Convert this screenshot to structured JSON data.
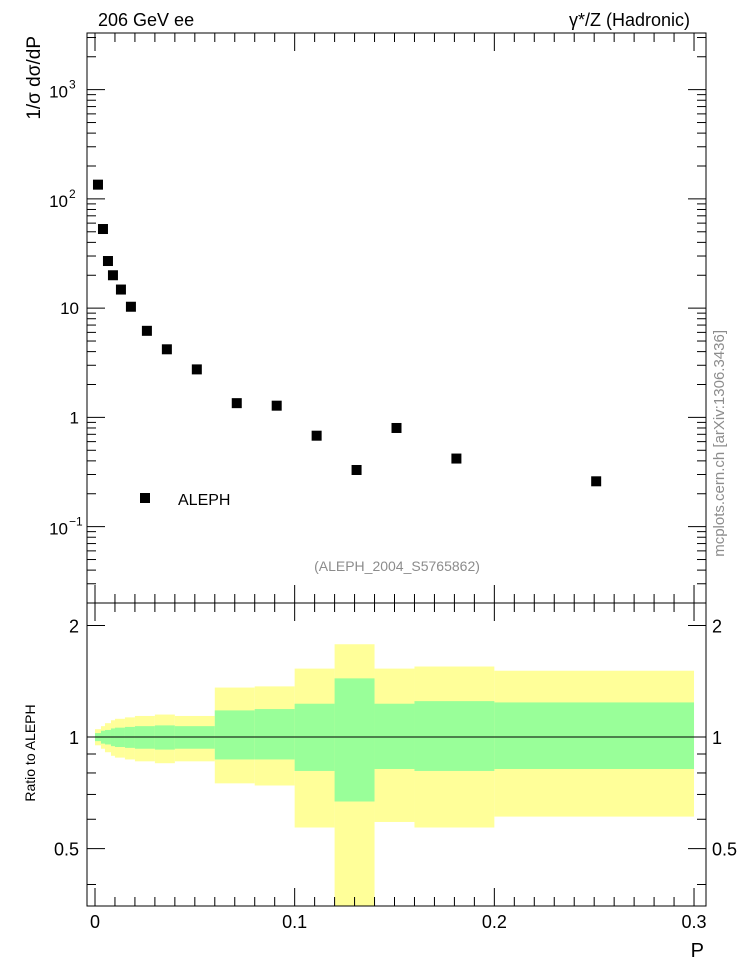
{
  "header": {
    "left": "206 GeV ee",
    "right": "γ*/Z (Hadronic)"
  },
  "side_label": "mcplots.cern.ch [arXiv:1306.3436]",
  "analysis_label": "(ALEPH_2004_S5765862)",
  "colors": {
    "band_outer": "#ffff99",
    "band_inner": "#99ff99",
    "marker": "#000000"
  },
  "chart_data": [
    {
      "type": "scatter",
      "ylabel": "1/σ  dσ/dP",
      "yscale": "log",
      "ylim": [
        0.02,
        3300
      ],
      "xlim": [
        -0.004,
        0.306
      ],
      "grid": false,
      "legend": {
        "position": "bottom-left",
        "entries": [
          "ALEPH"
        ]
      },
      "series": [
        {
          "name": "ALEPH",
          "x": [
            0.0015,
            0.004,
            0.0065,
            0.009,
            0.013,
            0.018,
            0.026,
            0.036,
            0.051,
            0.071,
            0.091,
            0.111,
            0.131,
            0.151,
            0.181,
            0.251
          ],
          "y": [
            135,
            53,
            27,
            20,
            14.8,
            10.3,
            6.2,
            4.2,
            2.75,
            1.35,
            1.28,
            0.68,
            0.33,
            0.8,
            0.42,
            0.26
          ]
        }
      ],
      "yticks_major": [
        {
          "value": 0.1,
          "base": "10",
          "exp": "−1"
        },
        {
          "value": 1,
          "text": "1"
        },
        {
          "value": 10,
          "text": "10"
        },
        {
          "value": 100,
          "base": "10",
          "exp": "2"
        },
        {
          "value": 1000,
          "base": "10",
          "exp": "3"
        }
      ]
    },
    {
      "type": "area",
      "xlabel": "P",
      "ylabel": "Ratio to ALEPH",
      "ylim": [
        0.35,
        2.3
      ],
      "xlim": [
        -0.004,
        0.306
      ],
      "reference_line": 1,
      "bins": [
        {
          "x0": 0.0,
          "x1": 0.003,
          "outer": [
            0.95,
            1.05
          ],
          "inner": [
            0.975,
            1.025
          ]
        },
        {
          "x0": 0.003,
          "x1": 0.005,
          "outer": [
            0.93,
            1.07
          ],
          "inner": [
            0.96,
            1.04
          ]
        },
        {
          "x0": 0.005,
          "x1": 0.008,
          "outer": [
            0.91,
            1.09
          ],
          "inner": [
            0.955,
            1.045
          ]
        },
        {
          "x0": 0.008,
          "x1": 0.01,
          "outer": [
            0.89,
            1.11
          ],
          "inner": [
            0.945,
            1.055
          ]
        },
        {
          "x0": 0.01,
          "x1": 0.015,
          "outer": [
            0.88,
            1.12
          ],
          "inner": [
            0.94,
            1.06
          ]
        },
        {
          "x0": 0.015,
          "x1": 0.02,
          "outer": [
            0.87,
            1.13
          ],
          "inner": [
            0.935,
            1.065
          ]
        },
        {
          "x0": 0.02,
          "x1": 0.03,
          "outer": [
            0.86,
            1.14
          ],
          "inner": [
            0.93,
            1.07
          ]
        },
        {
          "x0": 0.03,
          "x1": 0.04,
          "outer": [
            0.85,
            1.15
          ],
          "inner": [
            0.925,
            1.075
          ]
        },
        {
          "x0": 0.04,
          "x1": 0.06,
          "outer": [
            0.86,
            1.14
          ],
          "inner": [
            0.93,
            1.07
          ]
        },
        {
          "x0": 0.06,
          "x1": 0.08,
          "outer": [
            0.75,
            1.36
          ],
          "inner": [
            0.87,
            1.18
          ]
        },
        {
          "x0": 0.08,
          "x1": 0.1,
          "outer": [
            0.74,
            1.37
          ],
          "inner": [
            0.87,
            1.19
          ]
        },
        {
          "x0": 0.1,
          "x1": 0.12,
          "outer": [
            0.57,
            1.53
          ],
          "inner": [
            0.81,
            1.23
          ]
        },
        {
          "x0": 0.12,
          "x1": 0.14,
          "outer": [
            0.35,
            1.78
          ],
          "inner": [
            0.67,
            1.44
          ]
        },
        {
          "x0": 0.14,
          "x1": 0.16,
          "outer": [
            0.59,
            1.53
          ],
          "inner": [
            0.82,
            1.23
          ]
        },
        {
          "x0": 0.16,
          "x1": 0.2,
          "outer": [
            0.57,
            1.55
          ],
          "inner": [
            0.81,
            1.25
          ]
        },
        {
          "x0": 0.2,
          "x1": 0.3,
          "outer": [
            0.61,
            1.51
          ],
          "inner": [
            0.82,
            1.24
          ]
        }
      ],
      "yticks_labels": [
        "0.5",
        "1",
        "2"
      ],
      "xticks_labels": [
        "0",
        "0.1",
        "0.2",
        "0.3"
      ]
    }
  ]
}
